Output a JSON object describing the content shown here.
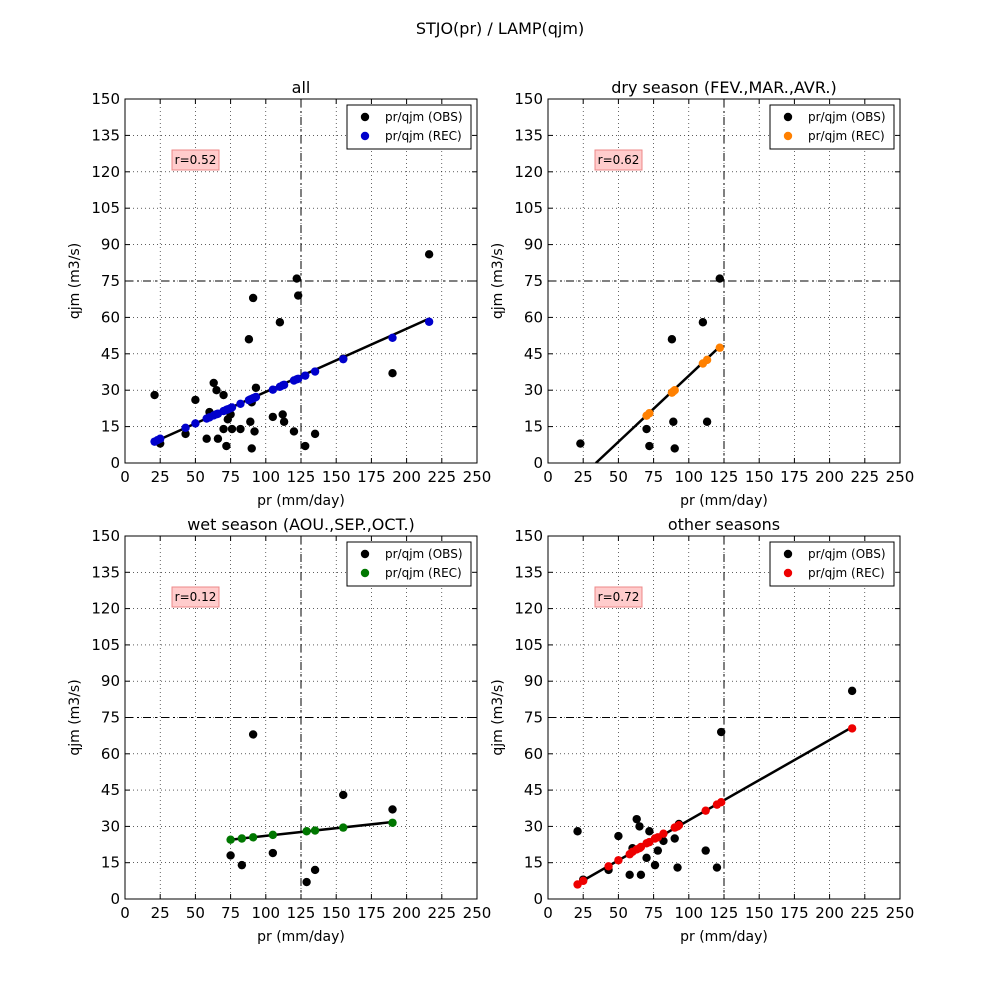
{
  "figure": {
    "suptitle": "STJO(pr) / LAMP(qjm)"
  },
  "colors": {
    "obs": "#000000",
    "rec": [
      "#0000cc",
      "#ff8000",
      "#007700",
      "#ee0000"
    ],
    "rbox_fill": "#ffcccc",
    "rbox_stroke": "#ee8888"
  },
  "chart_data": [
    {
      "type": "scatter",
      "title": "all",
      "xlabel": "pr (mm/day)",
      "ylabel": "qjm (m3/s)",
      "xlim": [
        0,
        250
      ],
      "ylim": [
        0,
        150
      ],
      "xticks": [
        0,
        25,
        50,
        75,
        100,
        125,
        150,
        175,
        200,
        225,
        250
      ],
      "yticks": [
        0,
        15,
        30,
        45,
        60,
        75,
        90,
        105,
        120,
        135,
        150
      ],
      "grid": true,
      "legend_position": "upper-right",
      "threshold_lines": {
        "x": 125,
        "y": 75
      },
      "annotation": "r=0.52",
      "series": [
        {
          "name": "pr/qjm (OBS)",
          "color": "#000000",
          "points": [
            [
              21,
              28
            ],
            [
              23,
              9
            ],
            [
              25,
              8
            ],
            [
              43,
              12
            ],
            [
              50,
              26
            ],
            [
              58,
              10
            ],
            [
              60,
              21
            ],
            [
              63,
              33
            ],
            [
              65,
              30
            ],
            [
              66,
              10
            ],
            [
              70,
              14
            ],
            [
              70,
              28
            ],
            [
              72,
              7
            ],
            [
              73,
              18
            ],
            [
              75,
              20
            ],
            [
              76,
              14
            ],
            [
              82,
              14
            ],
            [
              88,
              51
            ],
            [
              89,
              17
            ],
            [
              90,
              6
            ],
            [
              90,
              25
            ],
            [
              91,
              68
            ],
            [
              92,
              13
            ],
            [
              93,
              31
            ],
            [
              105,
              19
            ],
            [
              110,
              58
            ],
            [
              112,
              20
            ],
            [
              113,
              17
            ],
            [
              120,
              13
            ],
            [
              122,
              76
            ],
            [
              123,
              69
            ],
            [
              128,
              7
            ],
            [
              135,
              12
            ],
            [
              155,
              43
            ],
            [
              190,
              37
            ],
            [
              216,
              86
            ]
          ]
        },
        {
          "name": "pr/qjm (REC)",
          "color": "#0000cc",
          "points": [
            [
              21,
              8.8
            ],
            [
              23,
              9.4
            ],
            [
              25,
              10
            ],
            [
              43,
              14.5
            ],
            [
              50,
              16.3
            ],
            [
              58,
              18.3
            ],
            [
              60,
              18.8
            ],
            [
              63,
              19.6
            ],
            [
              65,
              20.1
            ],
            [
              66,
              20.3
            ],
            [
              70,
              21.4
            ],
            [
              72,
              21.9
            ],
            [
              73,
              22.1
            ],
            [
              75,
              22.6
            ],
            [
              76,
              22.9
            ],
            [
              82,
              24.4
            ],
            [
              88,
              25.9
            ],
            [
              89,
              26.2
            ],
            [
              90,
              26.4
            ],
            [
              91,
              26.7
            ],
            [
              92,
              26.9
            ],
            [
              93,
              27.2
            ],
            [
              105,
              30.2
            ],
            [
              110,
              31.4
            ],
            [
              112,
              32
            ],
            [
              113,
              32.2
            ],
            [
              120,
              34
            ],
            [
              122,
              34.5
            ],
            [
              123,
              34.7
            ],
            [
              128,
              36
            ],
            [
              135,
              37.7
            ],
            [
              155,
              42.8
            ],
            [
              190,
              51.6
            ],
            [
              216,
              58.2
            ]
          ]
        }
      ],
      "regression_line": [
        [
          20,
          8.5
        ],
        [
          216,
          59.5
        ]
      ]
    },
    {
      "type": "scatter",
      "title": "dry season (FEV.,MAR.,AVR.)",
      "xlabel": "pr (mm/day)",
      "ylabel": "qjm (m3/s)",
      "xlim": [
        0,
        250
      ],
      "ylim": [
        0,
        150
      ],
      "xticks": [
        0,
        25,
        50,
        75,
        100,
        125,
        150,
        175,
        200,
        225,
        250
      ],
      "yticks": [
        0,
        15,
        30,
        45,
        60,
        75,
        90,
        105,
        120,
        135,
        150
      ],
      "grid": true,
      "legend_position": "upper-right",
      "threshold_lines": {
        "x": 125,
        "y": 75
      },
      "annotation": "r=0.62",
      "series": [
        {
          "name": "pr/qjm (OBS)",
          "color": "#000000",
          "points": [
            [
              23,
              8
            ],
            [
              70,
              14
            ],
            [
              72,
              7
            ],
            [
              88,
              51
            ],
            [
              89,
              17
            ],
            [
              90,
              6
            ],
            [
              110,
              58
            ],
            [
              113,
              17
            ],
            [
              122,
              76
            ]
          ]
        },
        {
          "name": "pr/qjm (REC)",
          "color": "#ff8000",
          "points": [
            [
              70,
              19.5
            ],
            [
              72,
              20.5
            ],
            [
              88,
              29
            ],
            [
              89,
              29.5
            ],
            [
              90,
              30
            ],
            [
              110,
              41
            ],
            [
              113,
              42.5
            ],
            [
              122,
              47.5
            ]
          ]
        }
      ],
      "regression_line": [
        [
          34,
          0
        ],
        [
          123,
          48.5
        ]
      ]
    },
    {
      "type": "scatter",
      "title": "wet season (AOU.,SEP.,OCT.)",
      "xlabel": "pr (mm/day)",
      "ylabel": "qjm (m3/s)",
      "xlim": [
        0,
        250
      ],
      "ylim": [
        0,
        150
      ],
      "xticks": [
        0,
        25,
        50,
        75,
        100,
        125,
        150,
        175,
        200,
        225,
        250
      ],
      "yticks": [
        0,
        15,
        30,
        45,
        60,
        75,
        90,
        105,
        120,
        135,
        150
      ],
      "grid": true,
      "legend_position": "upper-right",
      "threshold_lines": {
        "x": 125,
        "y": 75
      },
      "annotation": "r=0.12",
      "series": [
        {
          "name": "pr/qjm (OBS)",
          "color": "#000000",
          "points": [
            [
              75,
              18
            ],
            [
              83,
              14
            ],
            [
              91,
              68
            ],
            [
              105,
              19
            ],
            [
              129,
              7
            ],
            [
              135,
              12
            ],
            [
              155,
              43
            ],
            [
              190,
              37
            ]
          ]
        },
        {
          "name": "pr/qjm (REC)",
          "color": "#007700",
          "points": [
            [
              75,
              24.5
            ],
            [
              83,
              25
            ],
            [
              91,
              25.5
            ],
            [
              105,
              26.5
            ],
            [
              129,
              28
            ],
            [
              135,
              28.3
            ],
            [
              155,
              29.5
            ],
            [
              190,
              31.5
            ]
          ]
        }
      ],
      "regression_line": [
        [
          75,
          24.5
        ],
        [
          190,
          31.8
        ]
      ]
    },
    {
      "type": "scatter",
      "title": "other seasons",
      "xlabel": "pr (mm/day)",
      "ylabel": "qjm (m3/s)",
      "xlim": [
        0,
        250
      ],
      "ylim": [
        0,
        150
      ],
      "xticks": [
        0,
        25,
        50,
        75,
        100,
        125,
        150,
        175,
        200,
        225,
        250
      ],
      "yticks": [
        0,
        15,
        30,
        45,
        60,
        75,
        90,
        105,
        120,
        135,
        150
      ],
      "grid": true,
      "legend_position": "upper-right",
      "threshold_lines": {
        "x": 125,
        "y": 75
      },
      "annotation": "r=0.72",
      "series": [
        {
          "name": "pr/qjm (OBS)",
          "color": "#000000",
          "points": [
            [
              21,
              28
            ],
            [
              25,
              8
            ],
            [
              43,
              12
            ],
            [
              50,
              26
            ],
            [
              58,
              10
            ],
            [
              60,
              21
            ],
            [
              63,
              33
            ],
            [
              65,
              30
            ],
            [
              66,
              10
            ],
            [
              70,
              17
            ],
            [
              72,
              28
            ],
            [
              76,
              14
            ],
            [
              78,
              20
            ],
            [
              82,
              24
            ],
            [
              90,
              25
            ],
            [
              92,
              13
            ],
            [
              93,
              31
            ],
            [
              112,
              20
            ],
            [
              120,
              13
            ],
            [
              123,
              69
            ],
            [
              216,
              86
            ]
          ]
        },
        {
          "name": "pr/qjm (REC)",
          "color": "#ee0000",
          "points": [
            [
              21,
              6
            ],
            [
              25,
              7.5
            ],
            [
              43,
              13.5
            ],
            [
              50,
              16
            ],
            [
              58,
              18.5
            ],
            [
              60,
              19.5
            ],
            [
              63,
              20.5
            ],
            [
              65,
              21
            ],
            [
              66,
              21.5
            ],
            [
              70,
              23
            ],
            [
              72,
              23.5
            ],
            [
              76,
              25
            ],
            [
              78,
              25.5
            ],
            [
              82,
              27
            ],
            [
              90,
              29.5
            ],
            [
              92,
              30
            ],
            [
              93,
              30.5
            ],
            [
              112,
              36.5
            ],
            [
              120,
              39
            ],
            [
              123,
              40
            ],
            [
              216,
              70.5
            ]
          ]
        }
      ],
      "regression_line": [
        [
          20,
          6
        ],
        [
          216,
          71
        ]
      ]
    }
  ]
}
